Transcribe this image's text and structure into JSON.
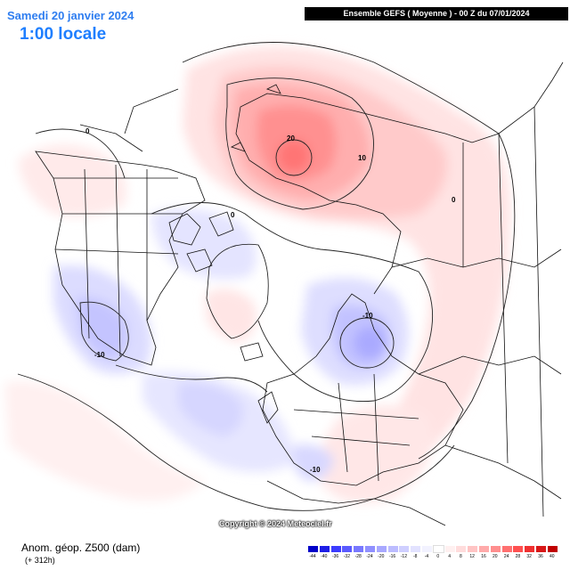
{
  "header": {
    "date": "Samedi 20 janvier 2024",
    "local_time": "1:00 locale",
    "model_run": "Ensemble GEFS  ( Moyenne )  -  00 Z du 07/01/2024"
  },
  "footer": {
    "parameter": "Anom. géop. Z500 (dam)",
    "lead_time": "(+ 312h)",
    "copyright": "Copyright © 2024 Meteociel.fr"
  },
  "contour_labels": {
    "zero_a": "0",
    "zero_b": "0",
    "zero_c": "0",
    "ten_asia": "10",
    "twenty": "20",
    "minus_ten_scand": "-10",
    "minus_ten_na": "-10",
    "minus_ten_atl": "-10"
  },
  "legend": {
    "labels": [
      "-44",
      "-40",
      "-36",
      "-32",
      "-28",
      "-24",
      "-20",
      "-16",
      "-12",
      "-8",
      "-4",
      "0",
      "4",
      "8",
      "12",
      "16",
      "20",
      "24",
      "28",
      "32",
      "36",
      "40"
    ],
    "colors": [
      "#0000c8",
      "#1e1ee6",
      "#3c3cff",
      "#5a5aff",
      "#7878ff",
      "#9090ff",
      "#a8a8ff",
      "#bcbcff",
      "#cfcfff",
      "#e2e2ff",
      "#f2f2ff",
      "#ffffff",
      "#fff0f0",
      "#ffdcdc",
      "#ffc4c4",
      "#ffaaaa",
      "#ff8e8e",
      "#ff7070",
      "#ff5050",
      "#f03030",
      "#d81818",
      "#c00000"
    ]
  },
  "icons": {
    "map": "geopotential-anomaly-map"
  }
}
